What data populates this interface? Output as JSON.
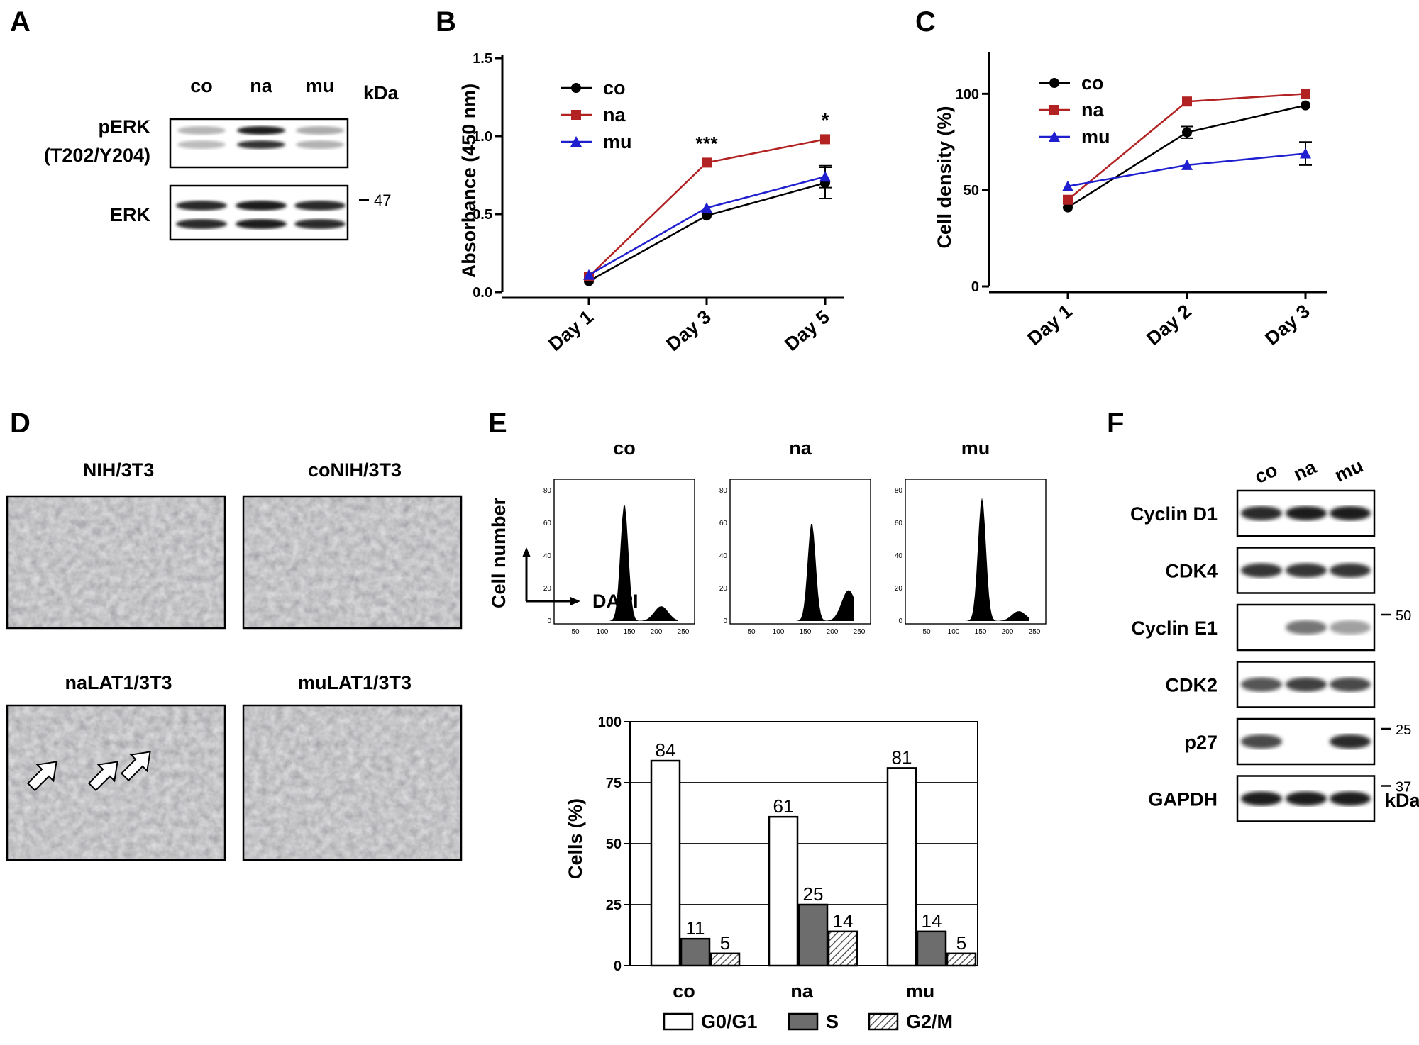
{
  "colors": {
    "co": "#000000",
    "na": "#b22222",
    "mu": "#1f1fcf",
    "g0g1": "#ffffff",
    "s": "#6d6d6d",
    "g2m": "#cfcfcf"
  },
  "panelA": {
    "letter": "A",
    "lanes": [
      "co",
      "na",
      "mu"
    ],
    "unit": "kDa",
    "rows": [
      {
        "label1": "pERK",
        "label2": "(T202/Y204)",
        "intensity": [
          0.25,
          0.95,
          0.3
        ]
      },
      {
        "label1": "ERK",
        "label2": "",
        "intensity": [
          0.9,
          0.95,
          0.9
        ]
      }
    ],
    "marker": "47"
  },
  "panelB": {
    "letter": "B",
    "chart_data": {
      "type": "line",
      "categories": [
        "Day 1",
        "Day 3",
        "Day 5"
      ],
      "ylabel": "Absorbance (450 nm)",
      "ylim": [
        0.0,
        1.5
      ],
      "yticks": [
        "0.0",
        "0.5",
        "1.0",
        "1.5"
      ],
      "legend": "top-left",
      "series": [
        {
          "name": "co",
          "values": [
            0.07,
            0.49,
            0.7
          ],
          "errors": [
            0,
            0,
            0.1
          ]
        },
        {
          "name": "na",
          "values": [
            0.1,
            0.83,
            0.98
          ],
          "errors": [
            0,
            0,
            0
          ]
        },
        {
          "name": "mu",
          "values": [
            0.11,
            0.54,
            0.74
          ],
          "errors": [
            0,
            0,
            0.07
          ]
        }
      ],
      "annotations": [
        {
          "category": "Day 3",
          "text": "***"
        },
        {
          "category": "Day 5",
          "text": "*"
        }
      ]
    }
  },
  "panelC": {
    "letter": "C",
    "chart_data": {
      "type": "line",
      "categories": [
        "Day 1",
        "Day 2",
        "Day 3"
      ],
      "ylabel": "Cell density (%)",
      "ylim": [
        0,
        120
      ],
      "yticks": [
        "0",
        "50",
        "100"
      ],
      "legend": "top-left",
      "series": [
        {
          "name": "co",
          "values": [
            41,
            80,
            94
          ],
          "errors": [
            0,
            3,
            0
          ]
        },
        {
          "name": "na",
          "values": [
            45,
            96,
            100
          ],
          "errors": [
            0,
            0,
            0
          ]
        },
        {
          "name": "mu",
          "values": [
            52,
            63,
            69
          ],
          "errors": [
            0,
            0,
            6
          ]
        }
      ]
    }
  },
  "panelD": {
    "letter": "D",
    "images": [
      {
        "caption": "NIH/3T3"
      },
      {
        "caption": "coNIH/3T3"
      },
      {
        "caption": "naLAT1/3T3"
      },
      {
        "caption": "muLAT1/3T3"
      }
    ]
  },
  "panelE": {
    "letter": "E",
    "histograms": [
      {
        "title": "co",
        "yticks": [
          "0",
          "20",
          "40",
          "60",
          "80"
        ]
      },
      {
        "title": "na",
        "yticks": [
          "0",
          "20",
          "40",
          "60",
          "80"
        ]
      },
      {
        "title": "mu",
        "yticks": [
          "0",
          "20",
          "40",
          "60",
          "80"
        ]
      }
    ],
    "histogram_xticks": [
      "50",
      "100",
      "150",
      "200",
      "250"
    ],
    "ylabel_hist": "Cell number",
    "xlabel_hist": "DAPI",
    "chart_data": {
      "type": "bar",
      "categories": [
        "co",
        "na",
        "mu"
      ],
      "ylabel": "Cells (%)",
      "ylim": [
        0,
        100
      ],
      "yticks": [
        "0",
        "25",
        "50",
        "75",
        "100"
      ],
      "series": [
        {
          "name": "G0/G1",
          "values": [
            84,
            61,
            81
          ]
        },
        {
          "name": "S",
          "values": [
            11,
            25,
            14
          ]
        },
        {
          "name": "G2/M",
          "values": [
            5,
            14,
            5
          ]
        }
      ],
      "legend": "bottom"
    }
  },
  "panelF": {
    "letter": "F",
    "lanes": [
      "co",
      "na",
      "mu"
    ],
    "unit": "kDa",
    "rows": [
      {
        "label": "Cyclin D1",
        "intensity": [
          0.9,
          0.95,
          0.95
        ],
        "marker": ""
      },
      {
        "label": "CDK4",
        "intensity": [
          0.85,
          0.85,
          0.85
        ],
        "marker": ""
      },
      {
        "label": "Cyclin E1",
        "intensity": [
          0.05,
          0.55,
          0.35
        ],
        "marker": "50"
      },
      {
        "label": "CDK2",
        "intensity": [
          0.7,
          0.8,
          0.75
        ],
        "marker": ""
      },
      {
        "label": "p27",
        "intensity": [
          0.75,
          0.05,
          0.9
        ],
        "marker": "25"
      },
      {
        "label": "GAPDH",
        "intensity": [
          0.95,
          0.95,
          0.95
        ],
        "marker": "37"
      }
    ]
  }
}
